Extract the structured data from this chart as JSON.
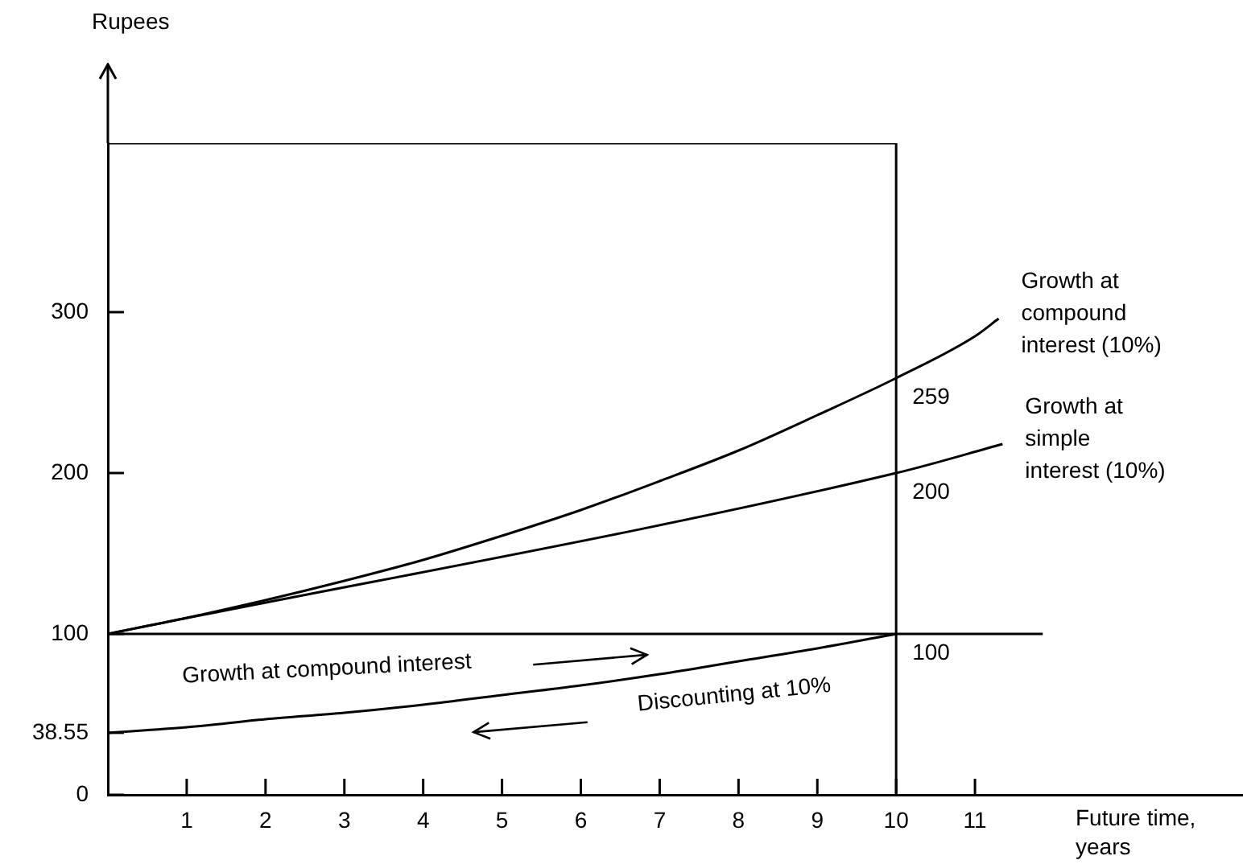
{
  "chart_data": {
    "type": "line",
    "xlabel": "Future time, years",
    "ylabel": "Rupees",
    "xlim": [
      0,
      14.4
    ],
    "ylim": [
      0,
      405
    ],
    "xticks": [
      1,
      2,
      3,
      4,
      5,
      6,
      7,
      8,
      9,
      10,
      11
    ],
    "yticks": [
      0,
      38.55,
      100,
      200,
      300
    ],
    "grid": false,
    "legend": false,
    "marker": "none",
    "line_style": "solid",
    "series": [
      {
        "name": "Growth at compound interest (10%)",
        "color": "#000000",
        "x": [
          0,
          1,
          2,
          3,
          4,
          5,
          6,
          7,
          8,
          9,
          10,
          11,
          11.3
        ],
        "values": [
          100,
          110,
          121,
          133,
          146,
          161,
          177,
          195,
          214,
          236,
          259,
          285,
          296
        ],
        "value_labels": [
          null,
          null,
          null,
          null,
          null,
          null,
          null,
          null,
          null,
          null,
          "259",
          null,
          null
        ]
      },
      {
        "name": "Growth at simple interest (10%)",
        "color": "#000000",
        "x": [
          0,
          10,
          11.35
        ],
        "values": [
          100,
          200,
          218
        ],
        "value_labels": [
          null,
          "200",
          null
        ]
      },
      {
        "color": "#000000",
        "x": [
          0,
          1,
          2,
          3,
          4,
          5,
          6,
          7,
          8,
          9,
          10
        ],
        "values": [
          38.55,
          42,
          47,
          51,
          56,
          62,
          68,
          75,
          83,
          91,
          100
        ],
        "value_labels": [
          null,
          null,
          null,
          null,
          null,
          null,
          null,
          null,
          null,
          null,
          "100"
        ]
      },
      {
        "color": "#000000",
        "x": [
          0,
          11.86
        ],
        "values": [
          100,
          100
        ]
      },
      {
        "color": "#000000",
        "x": [
          0,
          10
        ],
        "values": [
          405,
          405
        ]
      }
    ],
    "ref_lines": [
      {
        "axis": "x",
        "value": 10,
        "color": "#000000"
      }
    ],
    "annotations": [
      "Growth at compound interest",
      "Discounting at 10%"
    ]
  }
}
